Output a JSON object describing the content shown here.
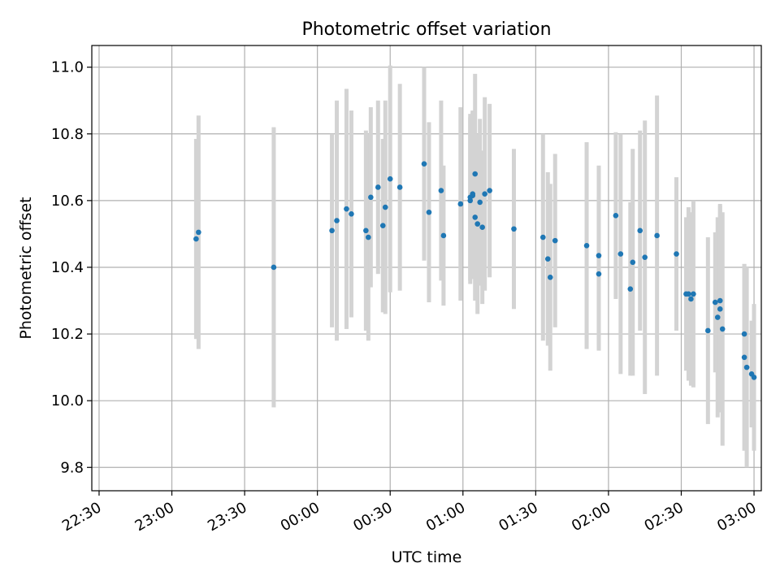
{
  "chart_data": {
    "type": "scatter",
    "title": "Photometric offset variation",
    "xlabel": "UTC time",
    "ylabel": "Photometric offset",
    "x_unit": "hours (UTC, continuing past midnight)",
    "xlim": [
      "22:27",
      "23:03 (next day)"
    ],
    "ylim": [
      9.73,
      11.065
    ],
    "grid": true,
    "x_ticks": [
      "22:30",
      "23:00",
      "23:30",
      "00:00",
      "00:30",
      "01:00",
      "01:30",
      "02:00",
      "02:30",
      "03:00"
    ],
    "y_ticks": [
      "9.8",
      "10.0",
      "10.2",
      "10.4",
      "10.6",
      "10.8",
      "11.0"
    ],
    "colors": {
      "point": "#1f77b4",
      "errorbar": "#d3d3d3",
      "grid": "#b0b0b0"
    },
    "points": [
      {
        "x": "23:10",
        "y": 10.485,
        "err": 0.3
      },
      {
        "x": "23:11",
        "y": 10.505,
        "err": 0.35
      },
      {
        "x": "23:42",
        "y": 10.4,
        "err": 0.42
      },
      {
        "x": "00:06",
        "y": 10.51,
        "err": 0.29
      },
      {
        "x": "00:08",
        "y": 10.54,
        "err": 0.36
      },
      {
        "x": "00:12",
        "y": 10.575,
        "err": 0.36
      },
      {
        "x": "00:14",
        "y": 10.56,
        "err": 0.31
      },
      {
        "x": "00:20",
        "y": 10.51,
        "err": 0.3
      },
      {
        "x": "00:21",
        "y": 10.49,
        "err": 0.31
      },
      {
        "x": "00:22",
        "y": 10.61,
        "err": 0.27
      },
      {
        "x": "00:25",
        "y": 10.64,
        "err": 0.26
      },
      {
        "x": "00:27",
        "y": 10.525,
        "err": 0.26
      },
      {
        "x": "00:28",
        "y": 10.58,
        "err": 0.32
      },
      {
        "x": "00:30",
        "y": 10.665,
        "err": 0.34
      },
      {
        "x": "00:34",
        "y": 10.64,
        "err": 0.31
      },
      {
        "x": "00:44",
        "y": 10.71,
        "err": 0.29
      },
      {
        "x": "00:46",
        "y": 10.565,
        "err": 0.27
      },
      {
        "x": "00:51",
        "y": 10.63,
        "err": 0.27
      },
      {
        "x": "00:52",
        "y": 10.495,
        "err": 0.21
      },
      {
        "x": "00:59",
        "y": 10.59,
        "err": 0.29
      },
      {
        "x": "01:03",
        "y": 10.6,
        "err": 0.25
      },
      {
        "x": "01:03",
        "y": 10.61,
        "err": 0.25
      },
      {
        "x": "01:04",
        "y": 10.615,
        "err": 0.25
      },
      {
        "x": "01:04",
        "y": 10.62,
        "err": 0.25
      },
      {
        "x": "01:05",
        "y": 10.68,
        "err": 0.3
      },
      {
        "x": "01:05",
        "y": 10.55,
        "err": 0.25
      },
      {
        "x": "01:06",
        "y": 10.53,
        "err": 0.27
      },
      {
        "x": "01:07",
        "y": 10.595,
        "err": 0.25
      },
      {
        "x": "01:08",
        "y": 10.52,
        "err": 0.23
      },
      {
        "x": "01:09",
        "y": 10.62,
        "err": 0.29
      },
      {
        "x": "01:11",
        "y": 10.63,
        "err": 0.26
      },
      {
        "x": "01:21",
        "y": 10.515,
        "err": 0.24
      },
      {
        "x": "01:33",
        "y": 10.49,
        "err": 0.31
      },
      {
        "x": "01:35",
        "y": 10.425,
        "err": 0.26
      },
      {
        "x": "01:36",
        "y": 10.37,
        "err": 0.28
      },
      {
        "x": "01:38",
        "y": 10.48,
        "err": 0.26
      },
      {
        "x": "01:51",
        "y": 10.465,
        "err": 0.31
      },
      {
        "x": "01:56",
        "y": 10.435,
        "err": 0.27
      },
      {
        "x": "01:56",
        "y": 10.38,
        "err": 0.23
      },
      {
        "x": "02:03",
        "y": 10.555,
        "err": 0.25
      },
      {
        "x": "02:05",
        "y": 10.44,
        "err": 0.36
      },
      {
        "x": "02:09",
        "y": 10.335,
        "err": 0.26
      },
      {
        "x": "02:10",
        "y": 10.415,
        "err": 0.34
      },
      {
        "x": "02:13",
        "y": 10.51,
        "err": 0.3
      },
      {
        "x": "02:15",
        "y": 10.43,
        "err": 0.41
      },
      {
        "x": "02:20",
        "y": 10.495,
        "err": 0.42
      },
      {
        "x": "02:28",
        "y": 10.44,
        "err": 0.23
      },
      {
        "x": "02:32",
        "y": 10.32,
        "err": 0.23
      },
      {
        "x": "02:33",
        "y": 10.32,
        "err": 0.26
      },
      {
        "x": "02:34",
        "y": 10.305,
        "err": 0.26
      },
      {
        "x": "02:35",
        "y": 10.32,
        "err": 0.28
      },
      {
        "x": "02:41",
        "y": 10.21,
        "err": 0.28
      },
      {
        "x": "02:44",
        "y": 10.295,
        "err": 0.21
      },
      {
        "x": "02:45",
        "y": 10.25,
        "err": 0.3
      },
      {
        "x": "02:46",
        "y": 10.3,
        "err": 0.29
      },
      {
        "x": "02:46",
        "y": 10.275,
        "err": 0.31
      },
      {
        "x": "02:47",
        "y": 10.215,
        "err": 0.35
      },
      {
        "x": "02:56",
        "y": 10.13,
        "err": 0.28
      },
      {
        "x": "02:56",
        "y": 10.2,
        "err": 0.21
      },
      {
        "x": "02:57",
        "y": 10.1,
        "err": 0.3
      },
      {
        "x": "02:59",
        "y": 10.08,
        "err": 0.16
      },
      {
        "x": "03:00",
        "y": 10.07,
        "err": 0.22
      }
    ]
  }
}
